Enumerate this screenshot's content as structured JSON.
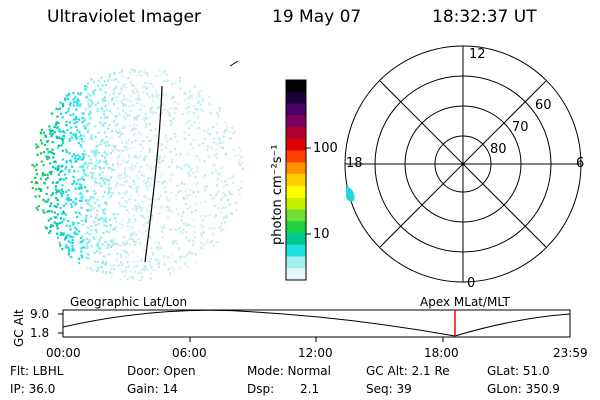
{
  "header": {
    "instrument": "Ultraviolet Imager",
    "date": "19 May 07",
    "time": "18:32:37 UT"
  },
  "colorbar": {
    "unit_label": "photon cm⁻²s⁻¹",
    "ticks": [
      "100",
      "10"
    ],
    "colors": [
      "#000000",
      "#1a0038",
      "#4a0068",
      "#800060",
      "#b00030",
      "#e00000",
      "#ff4000",
      "#ff9000",
      "#ffd000",
      "#ffff00",
      "#c8f000",
      "#70e030",
      "#20d040",
      "#00c890",
      "#20e0e0",
      "#a0f0f0",
      "#e8f8f8"
    ]
  },
  "polar_plot": {
    "mlt_labels": [
      "12",
      "18",
      "6",
      "0"
    ],
    "lat_labels": [
      "60",
      "70",
      "80"
    ]
  },
  "timeline": {
    "ylabel": "GC Alt",
    "yticks": [
      "9.0",
      "1.8"
    ],
    "left_label": "Geographic Lat/Lon",
    "right_label": "Apex MLat/MLT",
    "xticks": [
      "00:00",
      "06:00",
      "12:00",
      "18:00",
      "23:59"
    ],
    "marker_color": "#ff0000"
  },
  "info": {
    "flt": "Flt: LBHL",
    "ip": "IP: 36.0",
    "door": "Door: Open",
    "gain": "Gain: 14",
    "mode": "Mode: Normal",
    "dsp_label": "Dsp:",
    "dsp_value": "2.1",
    "gc_alt": "GC Alt: 2.1 Re",
    "seq": "Seq: 39",
    "glat": "GLat:  51.0",
    "glon": "GLon: 350.9"
  }
}
